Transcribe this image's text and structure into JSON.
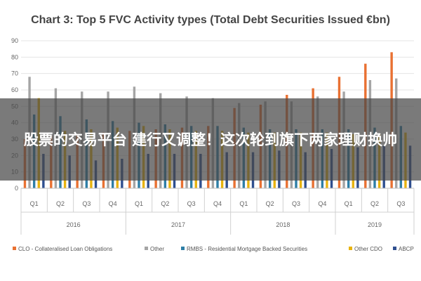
{
  "colors": {
    "clo": "#E97132",
    "other": "#A5A5A5",
    "rmbs": "#2E7EA6",
    "other_cdo": "#E8B30E",
    "abcp": "#2F4F8F",
    "grid": "#E4E4E4",
    "overlay": "#464646"
  },
  "overlay": {
    "text": "股票的交易平台 建行又调整！这次轮到旗下两家理财换帅"
  },
  "chart_data": {
    "type": "bar",
    "title": "Chart 3: Top 5 FVC Activity types (Total Debt Securities Issued €bn)",
    "xlabel": "",
    "ylabel": "",
    "ylim": [
      0,
      90
    ],
    "yticks": [
      0,
      10,
      20,
      30,
      40,
      50,
      60,
      70,
      80,
      90
    ],
    "grid": true,
    "legend_position": "bottom",
    "categories": [
      "Q1",
      "Q2",
      "Q3",
      "Q4",
      "Q1",
      "Q2",
      "Q3",
      "Q4",
      "Q1",
      "Q2",
      "Q3",
      "Q4",
      "Q1",
      "Q2",
      "Q3"
    ],
    "years": [
      {
        "label": "2016",
        "quarters": 4
      },
      {
        "label": "2017",
        "quarters": 4
      },
      {
        "label": "2018",
        "quarters": 4
      },
      {
        "label": "2019",
        "quarters": 3
      }
    ],
    "series": [
      {
        "name": "CLO - Collateralised Loan Obligations",
        "color_key": "clo",
        "values": [
          30,
          32,
          33,
          34,
          35,
          36,
          37,
          38,
          49,
          51,
          57,
          61,
          68,
          76,
          83
        ]
      },
      {
        "name": "Other",
        "color_key": "other",
        "values": [
          68,
          61,
          59,
          59,
          62,
          58,
          56,
          55,
          52,
          53,
          53,
          56,
          59,
          66,
          67
        ]
      },
      {
        "name": "RMBS - Residential Mortgage Backed Securities",
        "color_key": "rmbs",
        "values": [
          45,
          44,
          42,
          41,
          40,
          39,
          38,
          38,
          37,
          36,
          36,
          36,
          36,
          37,
          38
        ]
      },
      {
        "name": "Other CDO",
        "color_key": "other_cdo",
        "values": [
          55,
          35,
          36,
          37,
          38,
          36,
          35,
          35,
          34,
          34,
          34,
          34,
          33,
          33,
          34
        ]
      },
      {
        "name": "ABCP",
        "color_key": "abcp",
        "values": [
          21,
          20,
          17,
          18,
          21,
          21,
          21,
          22,
          22,
          23,
          22,
          24,
          25,
          26,
          26
        ]
      }
    ]
  }
}
